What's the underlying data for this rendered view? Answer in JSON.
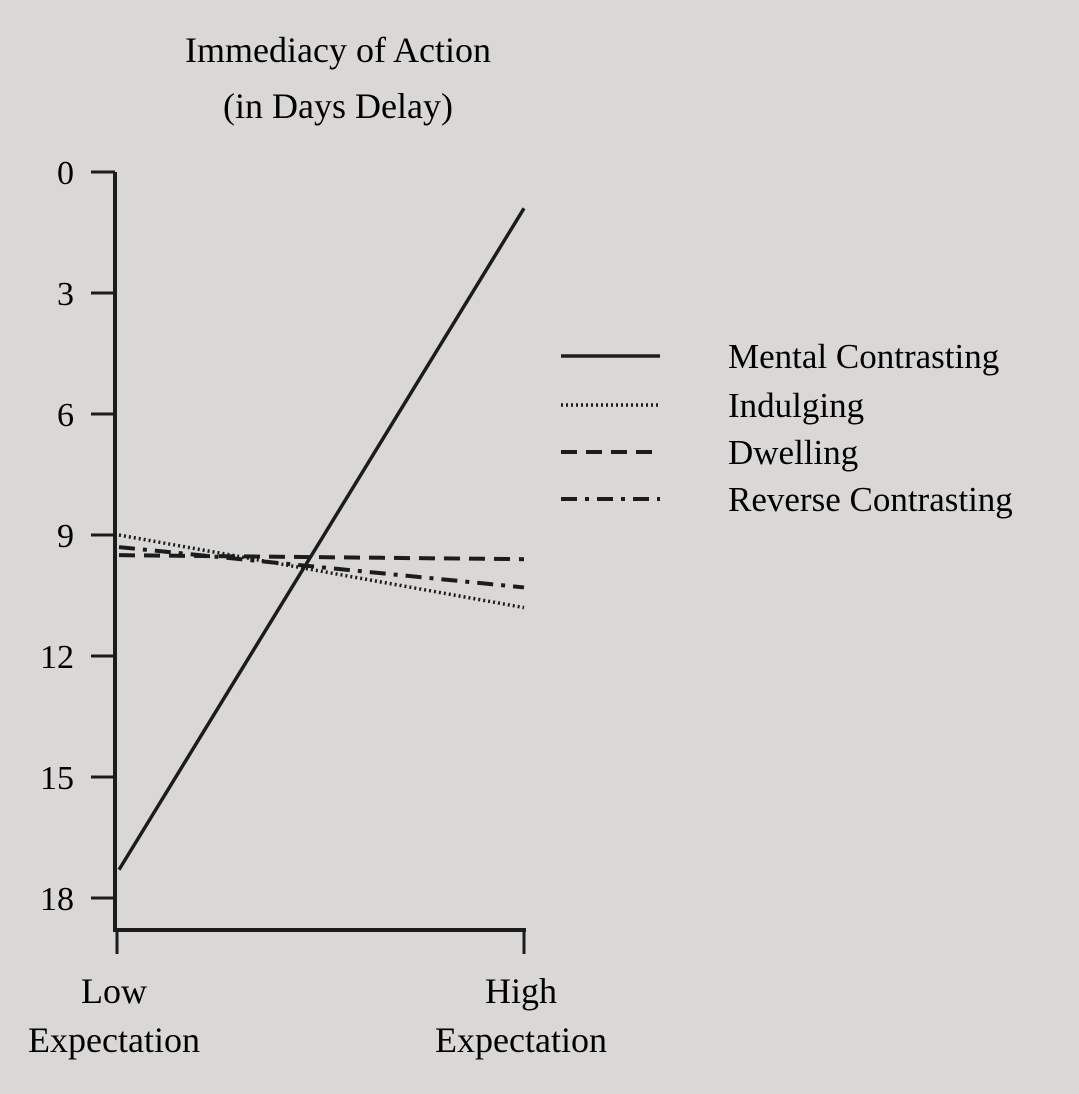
{
  "chart_data": {
    "type": "line",
    "title": [
      "Immediacy of Action",
      "(in Days Delay)"
    ],
    "y_axis": {
      "ticks": [
        "0",
        "3",
        "6",
        "9",
        "12",
        "15",
        "18"
      ],
      "tick_values": [
        0,
        3,
        6,
        9,
        12,
        15,
        18
      ],
      "ylim": [
        18.8,
        0
      ],
      "inverted": true
    },
    "x_axis": {
      "categories": [
        [
          "Low",
          "Expectation"
        ],
        [
          "High",
          "Expectation"
        ]
      ]
    },
    "grid": false,
    "legend": {
      "placement": "right"
    },
    "series": [
      {
        "name": "Mental Contrasting",
        "style": "solid",
        "values": [
          17.3,
          0.9
        ]
      },
      {
        "name": "Indulging",
        "style": "dotted",
        "values": [
          9.0,
          10.8
        ]
      },
      {
        "name": "Dwelling",
        "style": "dashed",
        "values": [
          9.5,
          9.6
        ]
      },
      {
        "name": "Reverse Contrasting",
        "style": "dashdot",
        "values": [
          9.3,
          10.3
        ]
      }
    ],
    "colors": {
      "ink": "#1c1c1c",
      "paper": "#d9d8d6"
    }
  }
}
